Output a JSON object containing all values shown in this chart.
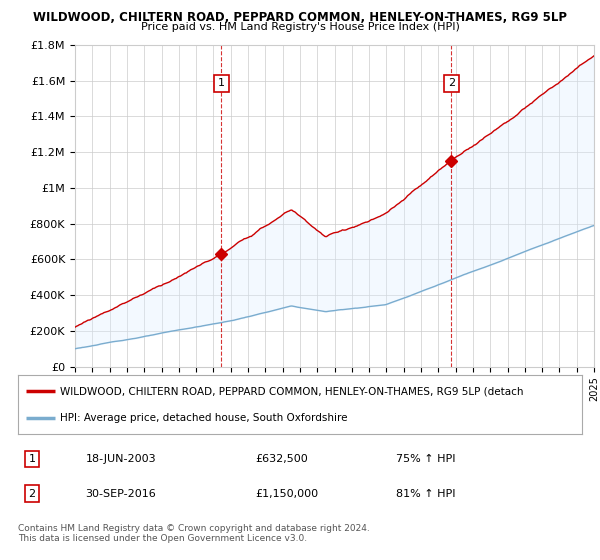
{
  "title1": "WILDWOOD, CHILTERN ROAD, PEPPARD COMMON, HENLEY-ON-THAMES, RG9 5LP",
  "title2": "Price paid vs. HM Land Registry's House Price Index (HPI)",
  "ylim": [
    0,
    1800000
  ],
  "yticks": [
    0,
    200000,
    400000,
    600000,
    800000,
    1000000,
    1200000,
    1400000,
    1600000,
    1800000
  ],
  "ytick_labels": [
    "£0",
    "£200K",
    "£400K",
    "£600K",
    "£800K",
    "£1M",
    "£1.2M",
    "£1.4M",
    "£1.6M",
    "£1.8M"
  ],
  "red_color": "#cc0000",
  "blue_color": "#7aacce",
  "fill_color": "#ddeeff",
  "background_color": "#ffffff",
  "grid_color": "#cccccc",
  "sale1_year": 2003.46,
  "sale1_price": 632500,
  "sale2_year": 2016.75,
  "sale2_price": 1150000,
  "legend_red": "WILDWOOD, CHILTERN ROAD, PEPPARD COMMON, HENLEY-ON-THAMES, RG9 5LP (detach",
  "legend_blue": "HPI: Average price, detached house, South Oxfordshire",
  "annotation1_label": "1",
  "annotation1_date": "18-JUN-2003",
  "annotation1_price": "£632,500",
  "annotation1_hpi": "75% ↑ HPI",
  "annotation2_label": "2",
  "annotation2_date": "30-SEP-2016",
  "annotation2_price": "£1,150,000",
  "annotation2_hpi": "81% ↑ HPI",
  "footer": "Contains HM Land Registry data © Crown copyright and database right 2024.\nThis data is licensed under the Open Government Licence v3.0.",
  "xstart": 1995,
  "xend": 2025
}
